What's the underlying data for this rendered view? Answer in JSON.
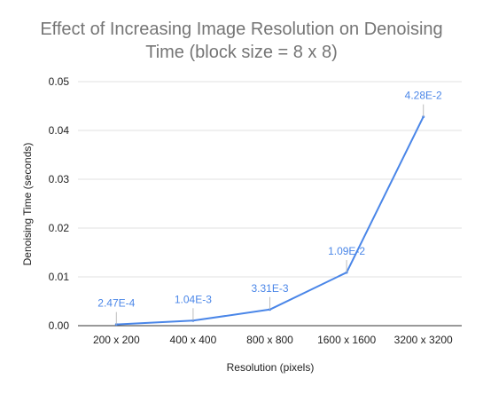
{
  "chart_data": {
    "type": "line",
    "title_lines": [
      "Effect of Increasing Image Resolution on Denoising",
      "Time (block size = 8 x 8)"
    ],
    "xlabel": "Resolution (pixels)",
    "ylabel": "Denoising Time (seconds)",
    "categories": [
      "200 x 200",
      "400 x 400",
      "800 x 800",
      "1600 x 1600",
      "3200 x 3200"
    ],
    "yticks": [
      "0.00",
      "0.01",
      "0.02",
      "0.03",
      "0.04",
      "0.05"
    ],
    "ylim": [
      0,
      0.05
    ],
    "grid": true,
    "series": [
      {
        "values": [
          0.000247,
          0.00104,
          0.00331,
          0.0109,
          0.0428
        ],
        "labels": [
          "2.47E-4",
          "1.04E-3",
          "3.31E-3",
          "1.09E-2",
          "4.28E-2"
        ],
        "color": "#4a86e8"
      }
    ],
    "gridline_color": "#e0e0e0",
    "axis_color": "#333333"
  }
}
